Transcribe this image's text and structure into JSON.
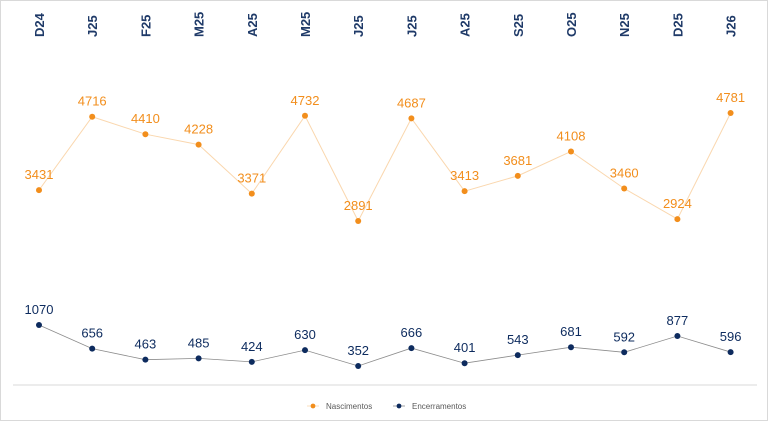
{
  "chart_data": {
    "type": "line",
    "categories": [
      "D24",
      "J25",
      "F25",
      "M25",
      "A25",
      "M25",
      "J25",
      "J25",
      "A25",
      "S25",
      "O25",
      "N25",
      "D25",
      "J26"
    ],
    "series": [
      {
        "name": "Nascimentos",
        "color": "#f28e1c",
        "line_color": "#fad7ae",
        "values": [
          3431,
          4716,
          4410,
          4228,
          3371,
          4732,
          2891,
          4687,
          3413,
          3681,
          4108,
          3460,
          2924,
          4781
        ]
      },
      {
        "name": "Encerramentos",
        "color": "#0d2b5e",
        "line_color": "#8c8c8c",
        "values": [
          1070,
          656,
          463,
          485,
          424,
          630,
          352,
          666,
          401,
          543,
          681,
          592,
          877,
          596
        ]
      }
    ],
    "legend_position": "bottom",
    "category_axis_position": "top",
    "grid": false
  }
}
